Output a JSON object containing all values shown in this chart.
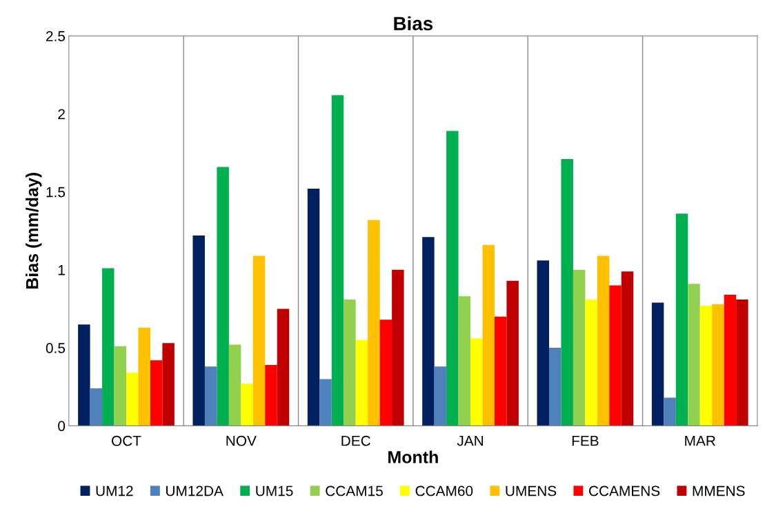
{
  "chart_data": {
    "type": "bar",
    "title": "Bias",
    "xlabel": "Month",
    "ylabel": "Bias (mm/day)",
    "categories": [
      "OCT",
      "NOV",
      "DEC",
      "JAN",
      "FEB",
      "MAR"
    ],
    "series": [
      {
        "name": "UM12",
        "color": "#002060",
        "values": [
          0.65,
          1.22,
          1.52,
          1.21,
          1.06,
          0.79
        ]
      },
      {
        "name": "UM12DA",
        "color": "#4f81bd",
        "values": [
          0.24,
          0.38,
          0.3,
          0.38,
          0.5,
          0.18
        ]
      },
      {
        "name": "UM15",
        "color": "#00b050",
        "values": [
          1.01,
          1.66,
          2.12,
          1.89,
          1.71,
          1.36
        ]
      },
      {
        "name": "CCAM15",
        "color": "#92d050",
        "values": [
          0.51,
          0.52,
          0.81,
          0.83,
          1.0,
          0.91
        ]
      },
      {
        "name": "CCAM60",
        "color": "#ffff00",
        "values": [
          0.34,
          0.27,
          0.55,
          0.56,
          0.81,
          0.77
        ]
      },
      {
        "name": "UMENS",
        "color": "#ffc000",
        "values": [
          0.63,
          1.09,
          1.32,
          1.16,
          1.09,
          0.78
        ]
      },
      {
        "name": "CCAMENS",
        "color": "#ff0000",
        "values": [
          0.42,
          0.39,
          0.68,
          0.7,
          0.9,
          0.84
        ]
      },
      {
        "name": "MMENS",
        "color": "#c00000",
        "values": [
          0.53,
          0.75,
          1.0,
          0.93,
          0.99,
          0.81
        ]
      }
    ],
    "ylim": [
      0,
      2.5
    ],
    "yticks": [
      0,
      0.5,
      1,
      1.5,
      2,
      2.5
    ],
    "grid": "x",
    "legend": "bottom"
  }
}
